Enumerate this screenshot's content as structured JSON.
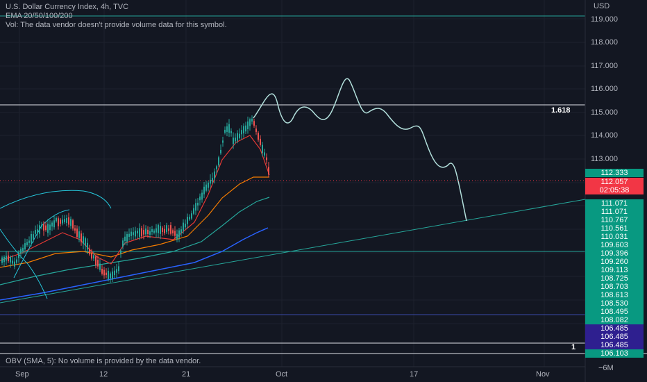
{
  "header": {
    "title": "U.S. Dollar Currency Index, 4h, TVC",
    "ema": "EMA 20/50/100/200",
    "vol": "Vol: The data vendor doesn't provide volume data for this symbol."
  },
  "obv": {
    "text": "OBV (SMA, 5): No volume is provided by the data vendor.",
    "axis_label": "−6M"
  },
  "price_axis": {
    "currency": "USD",
    "ticks": [
      "119.000",
      "118.000",
      "117.000",
      "116.000",
      "115.000",
      "114.000",
      "113.000"
    ]
  },
  "price_labels": {
    "current": {
      "value": "112.333",
      "color": "#089981"
    },
    "last": {
      "value": "112.057",
      "color": "#f23645"
    },
    "countdown": {
      "value": "02:05:38",
      "color": "#f23645"
    },
    "stack": [
      {
        "value": "111.071",
        "color": "#089981"
      },
      {
        "value": "111.071",
        "color": "#089981"
      },
      {
        "value": "110.767",
        "color": "#089981"
      },
      {
        "value": "110.561",
        "color": "#089981"
      },
      {
        "value": "110.031",
        "color": "#089981"
      },
      {
        "value": "109.603",
        "color": "#089981"
      },
      {
        "value": "109.396",
        "color": "#089981"
      },
      {
        "value": "109.260",
        "color": "#089981"
      },
      {
        "value": "109.113",
        "color": "#089981"
      },
      {
        "value": "108.725",
        "color": "#089981"
      },
      {
        "value": "108.703",
        "color": "#089981"
      },
      {
        "value": "108.613",
        "color": "#089981"
      },
      {
        "value": "108.530",
        "color": "#089981"
      },
      {
        "value": "108.495",
        "color": "#089981"
      },
      {
        "value": "108.082",
        "color": "#089981"
      },
      {
        "value": "106.485",
        "color": "#2e1f8f"
      },
      {
        "value": "106.485",
        "color": "#2e1f8f"
      },
      {
        "value": "106.485",
        "color": "#2e1f8f"
      },
      {
        "value": "106.103",
        "color": "#089981"
      }
    ]
  },
  "fib_levels": {
    "upper": "1.618",
    "lower": "1"
  },
  "time_axis": {
    "labels": [
      "Sep",
      "12",
      "21",
      "Oct",
      "17",
      "Nov"
    ]
  },
  "colors": {
    "background": "#131722",
    "up": "#26a69a",
    "down": "#ef5350",
    "projection": "#b2dfdb",
    "ema20": "#e53935",
    "ema50": "#f57c00",
    "ema100": "#26a69a",
    "ema200": "#2962ff",
    "trendline": "#26a69a"
  }
}
